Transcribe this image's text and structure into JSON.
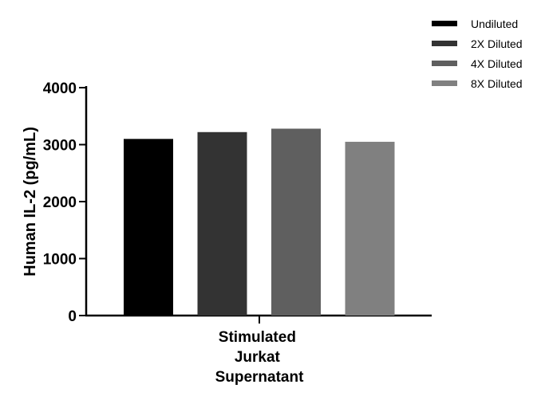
{
  "chart_data": {
    "type": "bar",
    "categories": [
      "Stimulated Jurkat Supernatant"
    ],
    "category_lines": [
      "Stimulated",
      "Jurkat",
      "Supernatant"
    ],
    "series": [
      {
        "name": "Undiluted",
        "values": [
          3100
        ],
        "color": "#000000"
      },
      {
        "name": "2X Diluted",
        "values": [
          3220
        ],
        "color": "#333333"
      },
      {
        "name": "4X Diluted",
        "values": [
          3280
        ],
        "color": "#5f5f5f"
      },
      {
        "name": "8X Diluted",
        "values": [
          3050
        ],
        "color": "#808080"
      }
    ],
    "ylabel": "Human IL-2 (pg/mL)",
    "xlabel": "",
    "ylim": [
      0,
      4000
    ],
    "yticks": [
      "0",
      "1000",
      "2000",
      "3000",
      "4000"
    ],
    "grid": false,
    "legend_position": "top-right"
  }
}
